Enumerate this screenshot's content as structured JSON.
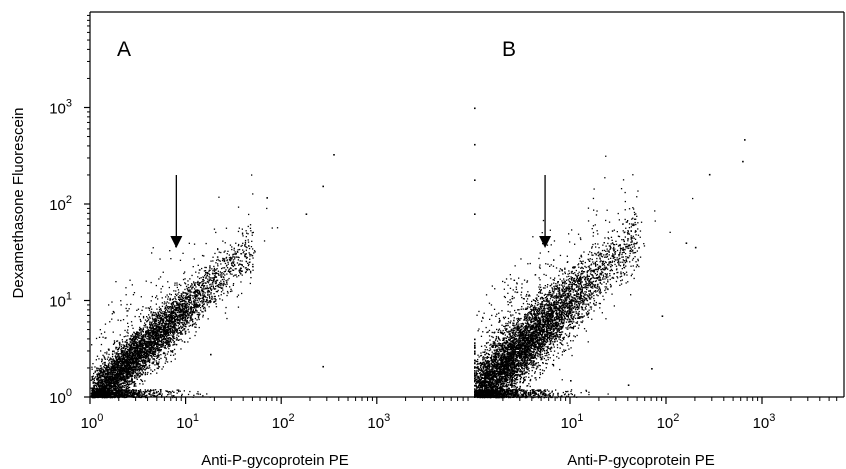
{
  "chart_data": {
    "type": "scatter",
    "xscale": "log",
    "yscale": "log",
    "xlim": [
      1,
      7000
    ],
    "ylim": [
      1,
      10000
    ],
    "grid": false,
    "ylabel": "Dexamethasone Fluorescein",
    "panels": [
      {
        "panel_label": "A",
        "xlabel": "Anti-P-gycoprotein PE",
        "xticks": [
          {
            "base": "10",
            "exp": "0",
            "value": 1
          },
          {
            "base": "10",
            "exp": "1",
            "value": 10
          },
          {
            "base": "10",
            "exp": "2",
            "value": 100
          },
          {
            "base": "10",
            "exp": "3",
            "value": 1000
          }
        ],
        "arrow_at_x": 8,
        "trend": {
          "slope": 0.93,
          "intercept_log10": 0.0,
          "spread_log10": 0.13,
          "outlier_fraction": 0.05
        },
        "outliers": [
          [
            350,
            330
          ],
          [
            270,
            155
          ],
          [
            70,
            118
          ],
          [
            180,
            80
          ],
          [
            25,
            26
          ],
          [
            270,
            2.1
          ],
          [
            18,
            2.8
          ]
        ]
      },
      {
        "panel_label": "B",
        "xlabel": "Anti-P-gycoprotein PE",
        "xticks": [
          {
            "base": "10",
            "exp": "1",
            "value": 10
          },
          {
            "base": "10",
            "exp": "2",
            "value": 100
          },
          {
            "base": "10",
            "exp": "3",
            "value": 1000
          }
        ],
        "arrow_at_x": 5.5,
        "trend": {
          "slope": 0.95,
          "intercept_log10": 0.05,
          "spread_log10": 0.17,
          "outlier_fraction": 0.08
        },
        "outliers": [
          [
            650,
            470
          ],
          [
            620,
            280
          ],
          [
            280,
            205
          ],
          [
            200,
            36
          ],
          [
            160,
            40
          ],
          [
            90,
            7
          ],
          [
            70,
            2
          ],
          [
            40,
            1.35
          ],
          [
            10,
            1.5
          ]
        ],
        "axis_points_y": [
          1000,
          420,
          180,
          80
        ]
      }
    ],
    "yticks": [
      {
        "base": "10",
        "exp": "0",
        "value": 1
      },
      {
        "base": "10",
        "exp": "1",
        "value": 10
      },
      {
        "base": "10",
        "exp": "2",
        "value": 100
      },
      {
        "base": "10",
        "exp": "3",
        "value": 1000
      }
    ]
  }
}
